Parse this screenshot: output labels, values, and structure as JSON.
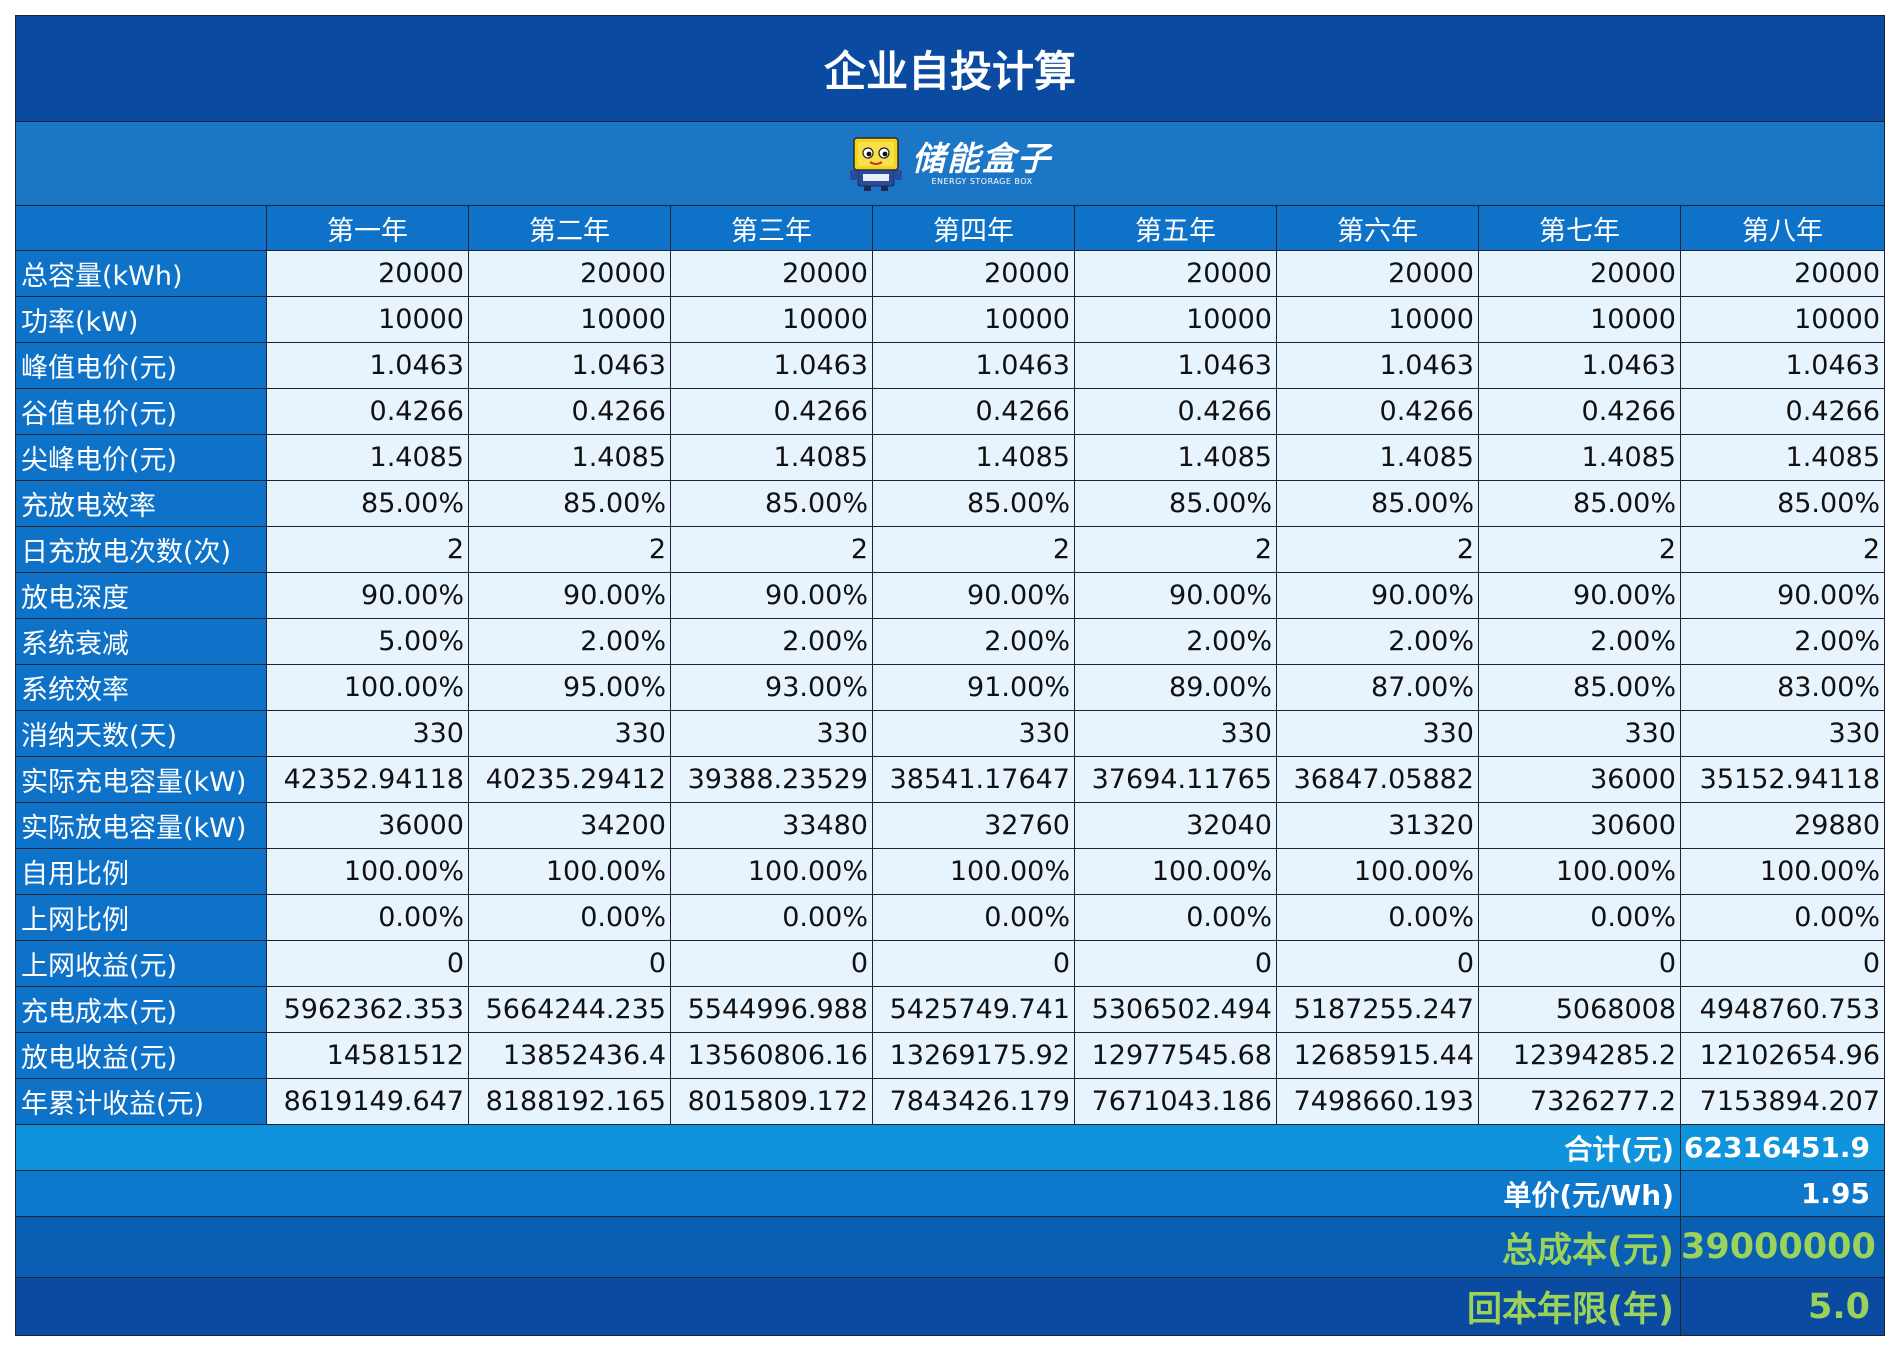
{
  "title": "企业自投计算",
  "logo": {
    "icon": "robot-box-mascot-icon",
    "name_cn": "储能盒子",
    "name_en": "ENERGY STORAGE BOX"
  },
  "colors": {
    "title_bg": "#0a4aa0",
    "header_bg": "#0d72c8",
    "cell_bg": "#e7f3fd",
    "highlight_text": "#9bd35a"
  },
  "header": [
    "",
    "第一年",
    "第二年",
    "第三年",
    "第四年",
    "第五年",
    "第六年",
    "第七年",
    "第八年"
  ],
  "rows": [
    {
      "label": "总容量(kWh)",
      "values": [
        "20000",
        "20000",
        "20000",
        "20000",
        "20000",
        "20000",
        "20000",
        "20000"
      ]
    },
    {
      "label": "功率(kW)",
      "values": [
        "10000",
        "10000",
        "10000",
        "10000",
        "10000",
        "10000",
        "10000",
        "10000"
      ]
    },
    {
      "label": "峰值电价(元)",
      "values": [
        "1.0463",
        "1.0463",
        "1.0463",
        "1.0463",
        "1.0463",
        "1.0463",
        "1.0463",
        "1.0463"
      ]
    },
    {
      "label": "谷值电价(元)",
      "values": [
        "0.4266",
        "0.4266",
        "0.4266",
        "0.4266",
        "0.4266",
        "0.4266",
        "0.4266",
        "0.4266"
      ]
    },
    {
      "label": "尖峰电价(元)",
      "values": [
        "1.4085",
        "1.4085",
        "1.4085",
        "1.4085",
        "1.4085",
        "1.4085",
        "1.4085",
        "1.4085"
      ]
    },
    {
      "label": "充放电效率",
      "values": [
        "85.00%",
        "85.00%",
        "85.00%",
        "85.00%",
        "85.00%",
        "85.00%",
        "85.00%",
        "85.00%"
      ]
    },
    {
      "label": "日充放电次数(次)",
      "values": [
        "2",
        "2",
        "2",
        "2",
        "2",
        "2",
        "2",
        "2"
      ]
    },
    {
      "label": "放电深度",
      "values": [
        "90.00%",
        "90.00%",
        "90.00%",
        "90.00%",
        "90.00%",
        "90.00%",
        "90.00%",
        "90.00%"
      ]
    },
    {
      "label": "系统衰减",
      "values": [
        "5.00%",
        "2.00%",
        "2.00%",
        "2.00%",
        "2.00%",
        "2.00%",
        "2.00%",
        "2.00%"
      ]
    },
    {
      "label": "系统效率",
      "values": [
        "100.00%",
        "95.00%",
        "93.00%",
        "91.00%",
        "89.00%",
        "87.00%",
        "85.00%",
        "83.00%"
      ]
    },
    {
      "label": "消纳天数(天)",
      "values": [
        "330",
        "330",
        "330",
        "330",
        "330",
        "330",
        "330",
        "330"
      ]
    },
    {
      "label": "实际充电容量(kW)",
      "values": [
        "42352.94118",
        "40235.29412",
        "39388.23529",
        "38541.17647",
        "37694.11765",
        "36847.05882",
        "36000",
        "35152.94118"
      ]
    },
    {
      "label": "实际放电容量(kW)",
      "values": [
        "36000",
        "34200",
        "33480",
        "32760",
        "32040",
        "31320",
        "30600",
        "29880"
      ]
    },
    {
      "label": "自用比例",
      "values": [
        "100.00%",
        "100.00%",
        "100.00%",
        "100.00%",
        "100.00%",
        "100.00%",
        "100.00%",
        "100.00%"
      ]
    },
    {
      "label": "上网比例",
      "values": [
        "0.00%",
        "0.00%",
        "0.00%",
        "0.00%",
        "0.00%",
        "0.00%",
        "0.00%",
        "0.00%"
      ]
    },
    {
      "label": "上网收益(元)",
      "values": [
        "0",
        "0",
        "0",
        "0",
        "0",
        "0",
        "0",
        "0"
      ]
    },
    {
      "label": "充电成本(元)",
      "values": [
        "5962362.353",
        "5664244.235",
        "5544996.988",
        "5425749.741",
        "5306502.494",
        "5187255.247",
        "5068008",
        "4948760.753"
      ]
    },
    {
      "label": "放电收益(元)",
      "values": [
        "14581512",
        "13852436.4",
        "13560806.16",
        "13269175.92",
        "12977545.68",
        "12685915.44",
        "12394285.2",
        "12102654.96"
      ]
    },
    {
      "label": "年累计收益(元)",
      "values": [
        "8619149.647",
        "8188192.165",
        "8015809.172",
        "7843426.179",
        "7671043.186",
        "7498660.193",
        "7326277.2",
        "7153894.207"
      ]
    }
  ],
  "summary": {
    "total": {
      "label": "合计(元)",
      "value": "62316451.9"
    },
    "unit_price": {
      "label": "单价(元/Wh)",
      "value": "1.95"
    },
    "total_cost": {
      "label": "总成本(元)",
      "value": "39000000"
    },
    "payback": {
      "label": "回本年限(年)",
      "value": "5.0"
    }
  }
}
